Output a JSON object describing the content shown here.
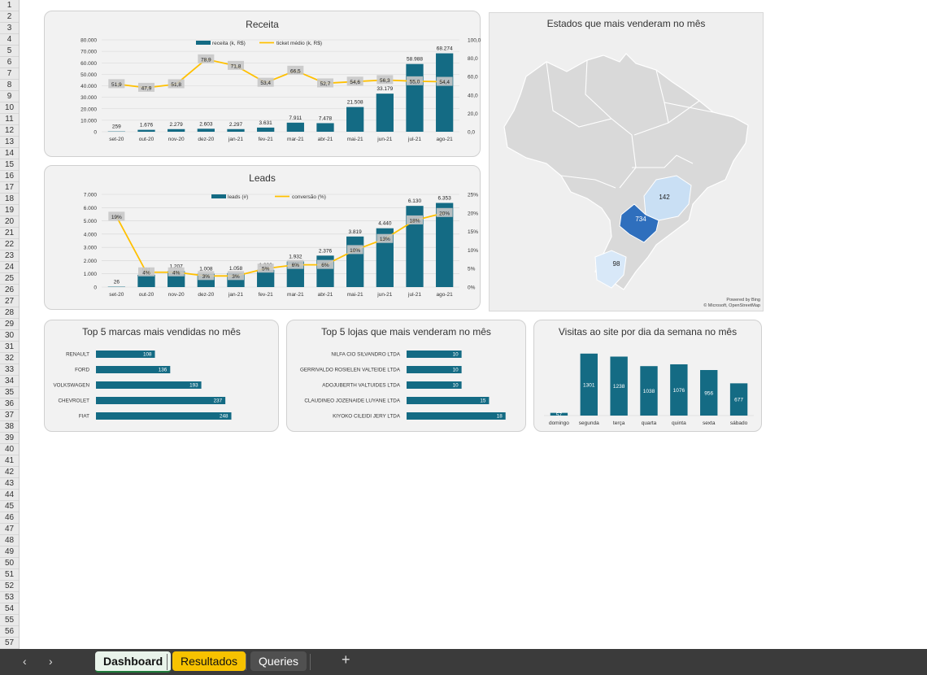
{
  "row_numbers": [
    "1",
    "2",
    "3",
    "4",
    "5",
    "6",
    "7",
    "8",
    "9",
    "10",
    "11",
    "12",
    "13",
    "14",
    "15",
    "16",
    "17",
    "18",
    "19",
    "20",
    "21",
    "22",
    "23",
    "24",
    "25",
    "26",
    "27",
    "28",
    "29",
    "30",
    "31",
    "32",
    "33",
    "34",
    "35",
    "36",
    "37",
    "38",
    "39",
    "40",
    "41",
    "42",
    "43",
    "44",
    "45",
    "46",
    "47",
    "48",
    "49",
    "50",
    "51",
    "52",
    "53",
    "54",
    "55",
    "56",
    "57"
  ],
  "tabs": {
    "dashboard": "Dashboard",
    "resultados": "Resultados",
    "queries": "Queries",
    "add": "+",
    "prev": "‹",
    "next": "›"
  },
  "colors": {
    "bar": "#146b84",
    "line": "#ffc000",
    "label_bg": "#c8c8c8",
    "tab_active_line": "#1e7a3a",
    "tab_yellow": "#f7c200"
  },
  "chart_data": [
    {
      "type": "bar",
      "title": "Receita",
      "categories": [
        "set-20",
        "out-20",
        "nov-20",
        "dez-20",
        "jan-21",
        "fev-21",
        "mar-21",
        "abr-21",
        "mai-21",
        "jun-21",
        "jul-21",
        "ago-21"
      ],
      "series": [
        {
          "name": "receita (k, R$)",
          "axis": "left",
          "values": [
            259,
            1676,
            2279,
            2603,
            2297,
            3631,
            7911,
            7478,
            21508,
            33179,
            58988,
            68274
          ],
          "labels": [
            "259",
            "1.676",
            "2.279",
            "2.603",
            "2.297",
            "3.631",
            "7.911",
            "7.478",
            "21.508",
            "33.179",
            "58.988",
            "68.274"
          ]
        },
        {
          "name": "ticket médio (k, R$)",
          "axis": "right",
          "values": [
            51.9,
            47.9,
            51.8,
            78.9,
            71.8,
            53.4,
            66.5,
            52.7,
            54.6,
            56.3,
            55.0,
            54.4
          ],
          "labels": [
            "51,9",
            "47,9",
            "51,8",
            "78,9",
            "71,8",
            "53,4",
            "66,5",
            "52,7",
            "54,6",
            "56,3",
            "55,0",
            "54,4"
          ]
        }
      ],
      "ylim": [
        0,
        80000
      ],
      "y2lim": [
        0,
        100
      ],
      "yticks": [
        "0",
        "10.000",
        "20.000",
        "30.000",
        "40.000",
        "50.000",
        "60.000",
        "70.000",
        "80.000"
      ],
      "y2ticks": [
        "0,0",
        "20,0",
        "40,0",
        "60,0",
        "80,0",
        "100,0"
      ],
      "legend": "top-center"
    },
    {
      "type": "bar",
      "title": "Leads",
      "categories": [
        "set-20",
        "out-20",
        "nov-20",
        "dez-20",
        "jan-21",
        "fev-21",
        "mar-21",
        "abr-21",
        "mai-21",
        "jun-21",
        "jul-21",
        "ago-21"
      ],
      "series": [
        {
          "name": "leads (#)",
          "axis": "left",
          "values": [
            26,
            931,
            1207,
            1008,
            1058,
            1300,
            1932,
            2376,
            3819,
            4440,
            6130,
            6353
          ],
          "labels": [
            "26",
            "931",
            "1.207",
            "1.008",
            "1.058",
            "1.300",
            "1.932",
            "2.376",
            "3.819",
            "4.440",
            "6.130",
            "6.353"
          ]
        },
        {
          "name": "conversão (%)",
          "axis": "right",
          "values": [
            19,
            4,
            4,
            3,
            3,
            5,
            6,
            6,
            10,
            13,
            18,
            20
          ],
          "labels": [
            "19%",
            "4%",
            "4%",
            "3%",
            "3%",
            "5%",
            "6%",
            "6%",
            "10%",
            "13%",
            "18%",
            "20%"
          ]
        }
      ],
      "ylim": [
        0,
        7000
      ],
      "y2lim": [
        0,
        25
      ],
      "yticks": [
        "0",
        "1.000",
        "2.000",
        "3.000",
        "4.000",
        "5.000",
        "6.000",
        "7.000"
      ],
      "y2ticks": [
        "0%",
        "5%",
        "10%",
        "15%",
        "20%",
        "25%"
      ],
      "legend": "top-center"
    },
    {
      "type": "bar",
      "orientation": "horizontal",
      "title": "Top 5 marcas mais vendidas no mês",
      "categories": [
        "RENAULT",
        "FORD",
        "VOLKSWAGEN",
        "CHEVROLET",
        "FIAT"
      ],
      "values": [
        108,
        136,
        193,
        237,
        248
      ],
      "xlim": [
        0,
        280
      ]
    },
    {
      "type": "bar",
      "orientation": "horizontal",
      "title": "Top 5 lojas que mais venderam no mês",
      "categories": [
        "NILFA CIO SILVANDRO LTDA",
        "GERRIVALDO ROSIELEN VALTEIDE LTDA",
        "ADOJUBERTH VALTUIDES LTDA",
        "CLAUDINEO JOZENAIDE LUYANE LTDA",
        "KIYOKO CILEIDI JERY LTDA"
      ],
      "values": [
        10,
        10,
        10,
        15,
        18
      ],
      "xlim": [
        0,
        21
      ]
    },
    {
      "type": "bar",
      "title": "Visitas ao site por dia da semana no mês",
      "categories": [
        "domingo",
        "segunda",
        "terça",
        "quarta",
        "quinta",
        "sexta",
        "sábado"
      ],
      "values": [
        57,
        1301,
        1238,
        1038,
        1076,
        956,
        677
      ],
      "ylim": [
        0,
        1400
      ]
    }
  ],
  "map": {
    "title": "Estados que mais venderam no mês",
    "highlighted": [
      {
        "state": "MG",
        "value": "142",
        "color": "#c9dff4"
      },
      {
        "state": "SP",
        "value": "734",
        "color": "#2f6fbd"
      },
      {
        "state": "RS",
        "value": "98",
        "color": "#d8e8f8"
      }
    ],
    "credit_line1": "Powered by Bing",
    "credit_line2": "© Microsoft, OpenStreetMap"
  }
}
